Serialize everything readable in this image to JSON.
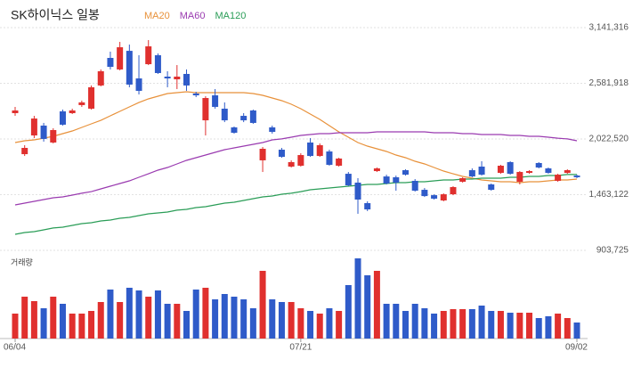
{
  "chart_data": {
    "type": "candlestick",
    "title": "SK하이닉스 일봉",
    "categories": [
      "06/04",
      null,
      null,
      null,
      null,
      null,
      null,
      null,
      null,
      null,
      null,
      null,
      null,
      null,
      null,
      null,
      null,
      null,
      null,
      null,
      null,
      null,
      null,
      null,
      null,
      null,
      null,
      null,
      null,
      null,
      "07/21",
      null,
      null,
      null,
      null,
      null,
      null,
      null,
      null,
      null,
      null,
      null,
      null,
      null,
      null,
      null,
      null,
      null,
      null,
      null,
      null,
      null,
      null,
      null,
      null,
      null,
      null,
      null,
      null,
      "09/02"
    ],
    "open": [
      2282000,
      1870000,
      2058000,
      2157000,
      1987000,
      2300000,
      2282000,
      2363000,
      2327000,
      2560000,
      2837000,
      2721000,
      2908000,
      2631000,
      2774000,
      2864000,
      2649000,
      2622000,
      2676000,
      2479000,
      2210000,
      2461000,
      2327000,
      2139000,
      2255000,
      2309000,
      1808000,
      2139000,
      1915000,
      1745000,
      1754000,
      1987000,
      1852000,
      1897000,
      1754000,
      1673000,
      1584000,
      1378000,
      1700000,
      1646000,
      1638000,
      1709000,
      1602000,
      1512000,
      1458000,
      1405000,
      1467000,
      1593000,
      1709000,
      1745000,
      1566000,
      1682000,
      1790000,
      1593000,
      1682000,
      1781000,
      1727000,
      1602000,
      1682000,
      1655000
    ],
    "high": [
      2345000,
      1960000,
      2255000,
      2184000,
      2130000,
      2318000,
      2327000,
      2408000,
      2560000,
      2721000,
      2900000,
      2998000,
      2971000,
      2864000,
      3016000,
      2882000,
      2703000,
      2765000,
      2721000,
      2497000,
      2452000,
      2524000,
      2390000,
      2148000,
      2282000,
      2318000,
      1942000,
      2157000,
      1933000,
      1808000,
      1879000,
      2031000,
      1978000,
      1915000,
      1834000,
      1691000,
      1629000,
      1396000,
      1736000,
      1664000,
      1655000,
      1718000,
      1620000,
      1530000,
      1467000,
      1476000,
      1548000,
      1638000,
      1727000,
      1799000,
      1575000,
      1763000,
      1799000,
      1700000,
      1709000,
      1790000,
      1736000,
      1673000,
      1718000,
      1664000
    ],
    "low": [
      2255000,
      1852000,
      2031000,
      1996000,
      1978000,
      2157000,
      2273000,
      2345000,
      2318000,
      2551000,
      2721000,
      2712000,
      2542000,
      2470000,
      2765000,
      2676000,
      2542000,
      2524000,
      2506000,
      2443000,
      2058000,
      2327000,
      2192000,
      2076000,
      2192000,
      2175000,
      1691000,
      2076000,
      1834000,
      1736000,
      1745000,
      1843000,
      1843000,
      1754000,
      1745000,
      1548000,
      1271000,
      1298000,
      1691000,
      1566000,
      1503000,
      1655000,
      1494000,
      1440000,
      1414000,
      1396000,
      1458000,
      1584000,
      1638000,
      1655000,
      1503000,
      1673000,
      1664000,
      1566000,
      1673000,
      1727000,
      1673000,
      1593000,
      1673000,
      1629000
    ],
    "close": [
      2309000,
      1933000,
      2228000,
      2023000,
      2112000,
      2166000,
      2309000,
      2390000,
      2542000,
      2703000,
      2747000,
      2944000,
      2569000,
      2506000,
      2953000,
      2685000,
      2631000,
      2649000,
      2560000,
      2461000,
      2434000,
      2345000,
      2210000,
      2085000,
      2210000,
      2184000,
      1924000,
      2094000,
      1843000,
      1790000,
      1861000,
      1852000,
      1960000,
      1763000,
      1826000,
      1557000,
      1414000,
      1315000,
      1727000,
      1575000,
      1584000,
      1664000,
      1503000,
      1449000,
      1423000,
      1467000,
      1539000,
      1629000,
      1646000,
      1664000,
      1512000,
      1754000,
      1673000,
      1691000,
      1700000,
      1736000,
      1682000,
      1664000,
      1709000,
      1638000
    ],
    "up_color": "#e0302e",
    "down_color": "#2f5bc9",
    "series": [
      {
        "name": "MA20",
        "color": "#e8913a",
        "values": [
          1987000,
          2005000,
          2014000,
          2031000,
          2049000,
          2076000,
          2103000,
          2139000,
          2175000,
          2210000,
          2255000,
          2300000,
          2345000,
          2389000,
          2425000,
          2452000,
          2479000,
          2488000,
          2497000,
          2488000,
          2488000,
          2488000,
          2488000,
          2488000,
          2488000,
          2479000,
          2461000,
          2434000,
          2407000,
          2372000,
          2327000,
          2273000,
          2219000,
          2157000,
          2094000,
          2040000,
          1987000,
          1951000,
          1924000,
          1897000,
          1861000,
          1835000,
          1799000,
          1772000,
          1736000,
          1700000,
          1673000,
          1647000,
          1629000,
          1611000,
          1602000,
          1593000,
          1593000,
          1584000,
          1593000,
          1593000,
          1602000,
          1611000,
          1611000,
          1620000
        ]
      },
      {
        "name": "MA60",
        "color": "#9a3bb0",
        "values": [
          1360000,
          1378000,
          1396000,
          1414000,
          1432000,
          1441000,
          1459000,
          1477000,
          1494000,
          1521000,
          1548000,
          1575000,
          1602000,
          1638000,
          1673000,
          1709000,
          1736000,
          1772000,
          1808000,
          1835000,
          1861000,
          1888000,
          1915000,
          1933000,
          1951000,
          1969000,
          1987000,
          2014000,
          2023000,
          2040000,
          2058000,
          2067000,
          2076000,
          2076000,
          2085000,
          2085000,
          2085000,
          2085000,
          2094000,
          2094000,
          2094000,
          2094000,
          2094000,
          2094000,
          2085000,
          2085000,
          2085000,
          2076000,
          2076000,
          2067000,
          2067000,
          2067000,
          2058000,
          2058000,
          2049000,
          2049000,
          2040000,
          2031000,
          2023000,
          2005000
        ]
      },
      {
        "name": "MA120",
        "color": "#2a9d57",
        "values": [
          1065000,
          1083000,
          1092000,
          1110000,
          1128000,
          1136000,
          1154000,
          1172000,
          1181000,
          1199000,
          1208000,
          1226000,
          1235000,
          1253000,
          1271000,
          1280000,
          1289000,
          1307000,
          1315000,
          1333000,
          1342000,
          1360000,
          1378000,
          1387000,
          1405000,
          1423000,
          1441000,
          1450000,
          1468000,
          1477000,
          1494000,
          1512000,
          1521000,
          1530000,
          1539000,
          1548000,
          1557000,
          1566000,
          1566000,
          1575000,
          1584000,
          1584000,
          1593000,
          1593000,
          1602000,
          1611000,
          1611000,
          1620000,
          1620000,
          1629000,
          1629000,
          1629000,
          1638000,
          1638000,
          1647000,
          1647000,
          1656000,
          1656000,
          1665000,
          1665000
        ]
      }
    ],
    "ylim": [
      903725,
      3141316
    ],
    "yticks": [
      {
        "value": 903725,
        "label": "903,725"
      },
      {
        "value": 1463122,
        "label": "1,463,122"
      },
      {
        "value": 2022520,
        "label": "2,022,520"
      },
      {
        "value": 2581918,
        "label": "2,581,918"
      },
      {
        "value": 3141316,
        "label": "3,141,316"
      }
    ],
    "grid": true,
    "volume": {
      "label": "거래량",
      "ylim": [
        0,
        100
      ],
      "values": [
        28,
        47,
        42,
        34,
        47,
        39,
        28,
        28,
        31,
        41,
        55,
        41,
        57,
        54,
        47,
        54,
        39,
        39,
        31,
        55,
        57,
        44,
        50,
        47,
        44,
        34,
        76,
        44,
        41,
        41,
        34,
        31,
        28,
        34,
        31,
        60,
        90,
        71,
        76,
        39,
        39,
        31,
        39,
        34,
        28,
        31,
        33,
        33,
        33,
        37,
        31,
        31,
        29,
        29,
        29,
        23,
        25,
        28,
        23,
        18
      ]
    }
  }
}
